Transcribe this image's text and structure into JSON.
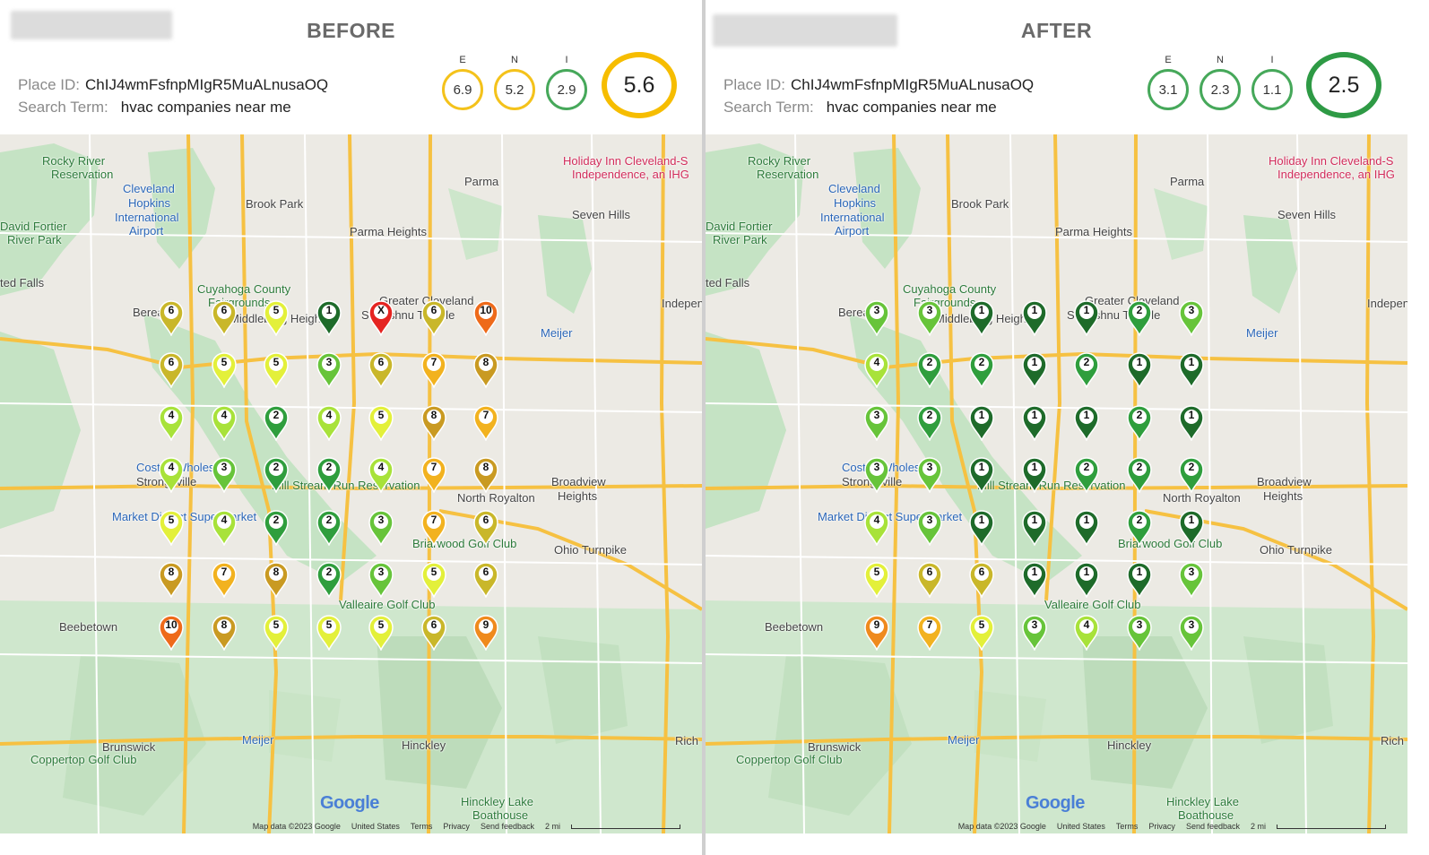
{
  "before": {
    "title": "BEFORE",
    "place_label": "Place ID:",
    "place_id": "ChIJ4wmFsfnpMIgR5MuALnusaOQ",
    "search_label": "Search Term:",
    "search_term": "hvac companies near me",
    "metrics": [
      {
        "label": "E",
        "value": "6.9",
        "color": "#f4c21b"
      },
      {
        "label": "N",
        "value": "5.2",
        "color": "#f4c21b"
      },
      {
        "label": "I",
        "value": "2.9",
        "color": "#46a85a"
      }
    ],
    "overall": {
      "value": "5.6",
      "color": "#f6bd00"
    },
    "grid": [
      [
        "6",
        "6",
        "5",
        "1",
        "X",
        "6",
        "10"
      ],
      [
        "6",
        "5",
        "5",
        "3",
        "6",
        "7",
        "8"
      ],
      [
        "4",
        "4",
        "2",
        "4",
        "5",
        "8",
        "7"
      ],
      [
        "4",
        "3",
        "2",
        "2",
        "4",
        "7",
        "8"
      ],
      [
        "5",
        "4",
        "2",
        "2",
        "3",
        "7",
        "6"
      ],
      [
        "8",
        "7",
        "8",
        "2",
        "3",
        "5",
        "6"
      ],
      [
        "10",
        "8",
        "5",
        "5",
        "5",
        "6",
        "9"
      ]
    ]
  },
  "after": {
    "title": "AFTER",
    "place_label": "Place ID:",
    "place_id": "ChIJ4wmFsfnpMIgR5MuALnusaOQ",
    "search_label": "Search Term:",
    "search_term": "hvac companies near me",
    "metrics": [
      {
        "label": "E",
        "value": "3.1",
        "color": "#46a85a"
      },
      {
        "label": "N",
        "value": "2.3",
        "color": "#46a85a"
      },
      {
        "label": "I",
        "value": "1.1",
        "color": "#46a85a"
      }
    ],
    "overall": {
      "value": "2.5",
      "color": "#2e9a45"
    },
    "grid": [
      [
        "3",
        "3",
        "1",
        "1",
        "1",
        "2",
        "3"
      ],
      [
        "4",
        "2",
        "2",
        "1",
        "2",
        "1",
        "1"
      ],
      [
        "3",
        "2",
        "1",
        "1",
        "1",
        "2",
        "1"
      ],
      [
        "3",
        "3",
        "1",
        "1",
        "2",
        "2",
        "2"
      ],
      [
        "4",
        "3",
        "1",
        "1",
        "1",
        "2",
        "1"
      ],
      [
        "5",
        "6",
        "6",
        "1",
        "1",
        "1",
        "3"
      ],
      [
        "9",
        "7",
        "5",
        "3",
        "4",
        "3",
        "3"
      ]
    ]
  },
  "pin_colors": {
    "1": "#1e6b2a",
    "2": "#2f9e3d",
    "3": "#67c43a",
    "4": "#a8e23a",
    "5": "#e3f03a",
    "6": "#c9b72a",
    "7": "#f2b21f",
    "8": "#c99a22",
    "9": "#ef8a1d",
    "10": "#ee6a1a",
    "X": "#e52421"
  },
  "map_labels": [
    {
      "text": "Rocky River",
      "kind": "green"
    },
    {
      "text": "Reservation",
      "kind": "green"
    },
    {
      "text": "Cleveland",
      "kind": "blue"
    },
    {
      "text": "Hopkins",
      "kind": "blue"
    },
    {
      "text": "International",
      "kind": "blue"
    },
    {
      "text": "Airport",
      "kind": "blue"
    },
    {
      "text": "David Fortier",
      "kind": "green"
    },
    {
      "text": "River Park",
      "kind": "green"
    },
    {
      "text": "Brook Park",
      "kind": ""
    },
    {
      "text": "Parma",
      "kind": ""
    },
    {
      "text": "Parma Heights",
      "kind": ""
    },
    {
      "text": "Seven Hills",
      "kind": ""
    },
    {
      "text": "Holiday Inn Cleveland-S",
      "kind": "pink"
    },
    {
      "text": "Independence, an IHG",
      "kind": "pink"
    },
    {
      "text": "Cuyahoga County",
      "kind": "green"
    },
    {
      "text": "Fairgrounds",
      "kind": "green"
    },
    {
      "text": "Greater Cleveland",
      "kind": ""
    },
    {
      "text": "Sri Vishnu Temple",
      "kind": ""
    },
    {
      "text": "Berea",
      "kind": ""
    },
    {
      "text": "Middleburg Heights",
      "kind": ""
    },
    {
      "text": "Meijer",
      "kind": "blue"
    },
    {
      "text": "Independence",
      "kind": ""
    },
    {
      "text": "Broadview",
      "kind": ""
    },
    {
      "text": "Heights",
      "kind": ""
    },
    {
      "text": "North Royalton",
      "kind": ""
    },
    {
      "text": "Strongsville",
      "kind": ""
    },
    {
      "text": "Mill Stream Run Reservation",
      "kind": "green"
    },
    {
      "text": "Market District Supermarket",
      "kind": "blue"
    },
    {
      "text": "Briarwood Golf Club",
      "kind": "green"
    },
    {
      "text": "Ohio Turnpike",
      "kind": ""
    },
    {
      "text": "Valleaire Golf Club",
      "kind": "green"
    },
    {
      "text": "Beebetown",
      "kind": ""
    },
    {
      "text": "Brunswick",
      "kind": ""
    },
    {
      "text": "Meijer",
      "kind": "blue"
    },
    {
      "text": "Hinckley",
      "kind": ""
    },
    {
      "text": "Coppertop Golf Club",
      "kind": "green"
    },
    {
      "text": "Hinckley Lake",
      "kind": "green"
    },
    {
      "text": "Boathouse",
      "kind": "green"
    },
    {
      "text": "Rich",
      "kind": ""
    },
    {
      "text": "ted Falls",
      "kind": ""
    },
    {
      "text": "Costco Wholesale",
      "kind": "blue"
    }
  ],
  "attribution": {
    "map_data": "Map data ©2023 Google",
    "country": "United States",
    "terms": "Terms",
    "privacy": "Privacy",
    "feedback": "Send feedback",
    "scale": "2 mi",
    "logo": "Google"
  }
}
